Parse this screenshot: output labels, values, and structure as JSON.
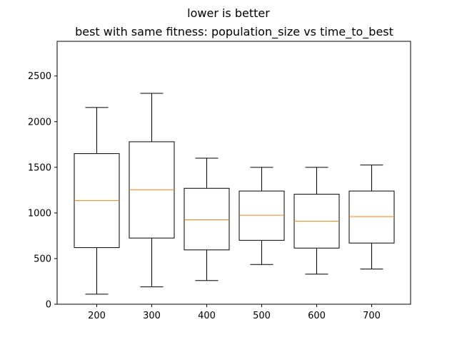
{
  "chart_data": {
    "type": "box",
    "suptitle": "lower is better",
    "title": "best with same fitness: population_size vs time_to_best",
    "xlabel": "",
    "ylabel": "",
    "categories": [
      "200",
      "300",
      "400",
      "500",
      "600",
      "700"
    ],
    "boxes": [
      {
        "category": "200",
        "whislo": 110,
        "q1": 620,
        "med": 1135,
        "q3": 1650,
        "whishi": 2155
      },
      {
        "category": "300",
        "whislo": 190,
        "q1": 725,
        "med": 1255,
        "q3": 1780,
        "whishi": 2310
      },
      {
        "category": "400",
        "whislo": 260,
        "q1": 595,
        "med": 925,
        "q3": 1270,
        "whishi": 1600
      },
      {
        "category": "500",
        "whislo": 435,
        "q1": 700,
        "med": 975,
        "q3": 1240,
        "whishi": 1500
      },
      {
        "category": "600",
        "whislo": 330,
        "q1": 615,
        "med": 910,
        "q3": 1205,
        "whishi": 1500
      },
      {
        "category": "700",
        "whislo": 385,
        "q1": 670,
        "med": 960,
        "q3": 1240,
        "whishi": 1525
      }
    ],
    "ylim": [
      0,
      2880
    ],
    "yticks": [
      0,
      500,
      1000,
      1500,
      2000,
      2500
    ],
    "grid": false,
    "colors": {
      "box": "#000000",
      "median": "#ff7f0e",
      "axes": "#000000",
      "background": "#ffffff"
    }
  }
}
